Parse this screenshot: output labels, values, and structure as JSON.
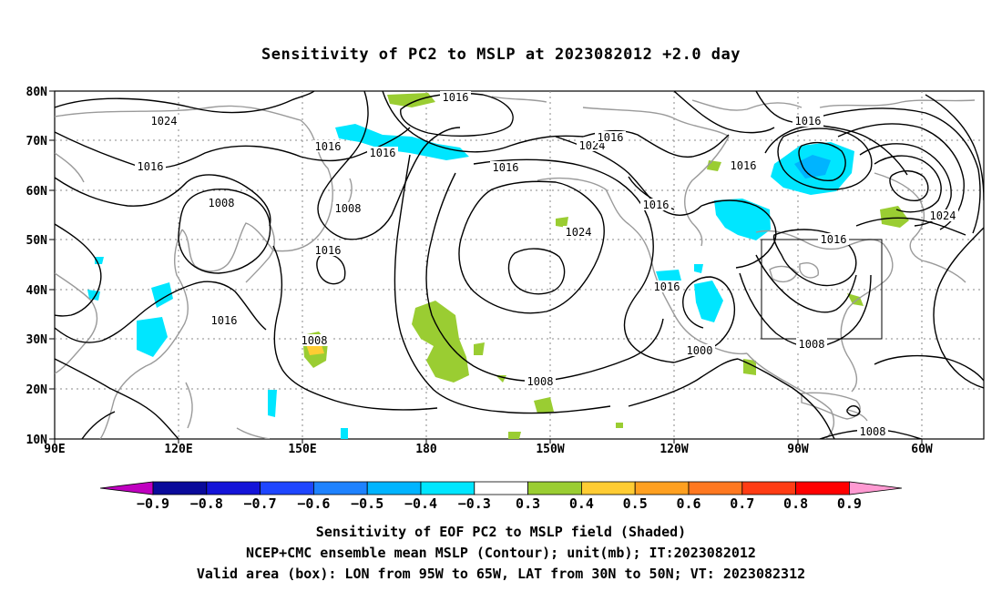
{
  "title": "Sensitivity of PC2 to MSLP at 2023082012 +2.0 day",
  "map": {
    "lat_labels": [
      "80N",
      "70N",
      "60N",
      "50N",
      "40N",
      "30N",
      "20N",
      "10N"
    ],
    "lon_labels": [
      "90E",
      "120E",
      "150E",
      "180",
      "150W",
      "120W",
      "90W",
      "60W"
    ],
    "contour_labels": [
      "1024",
      "1016",
      "1008",
      "1016",
      "1008",
      "1016",
      "1016",
      "1008",
      "1016",
      "1024",
      "1016",
      "1016",
      "1008",
      "1016",
      "1016",
      "1000",
      "1016",
      "1008",
      "1024",
      "1016",
      "1008",
      "1024",
      "1016",
      "1016"
    ]
  },
  "colorbar": {
    "colors": [
      "#c000c0",
      "#0a0a9a",
      "#1414d8",
      "#1e46ff",
      "#1e82ff",
      "#00b4ff",
      "#00e6ff",
      "#ffffff",
      "#9acd32",
      "#ffcc33",
      "#ffa020",
      "#ff7820",
      "#ff3c14",
      "#ff0000",
      "#ff9ad2"
    ],
    "tick_labels": [
      "−0.9",
      "−0.8",
      "−0.7",
      "−0.6",
      "−0.5",
      "−0.4",
      "−0.3",
      "0.3",
      "0.4",
      "0.5",
      "0.6",
      "0.7",
      "0.8",
      "0.9"
    ]
  },
  "captions": {
    "line1": "Sensitivity of EOF PC2 to MSLP field (Shaded)",
    "line2": "NCEP+CMC ensemble mean MSLP (Contour); unit(mb); IT:2023082012",
    "line3": "Valid area (box): LON from 95W to 65W, LAT from 30N to 50N; VT: 2023082312"
  }
}
